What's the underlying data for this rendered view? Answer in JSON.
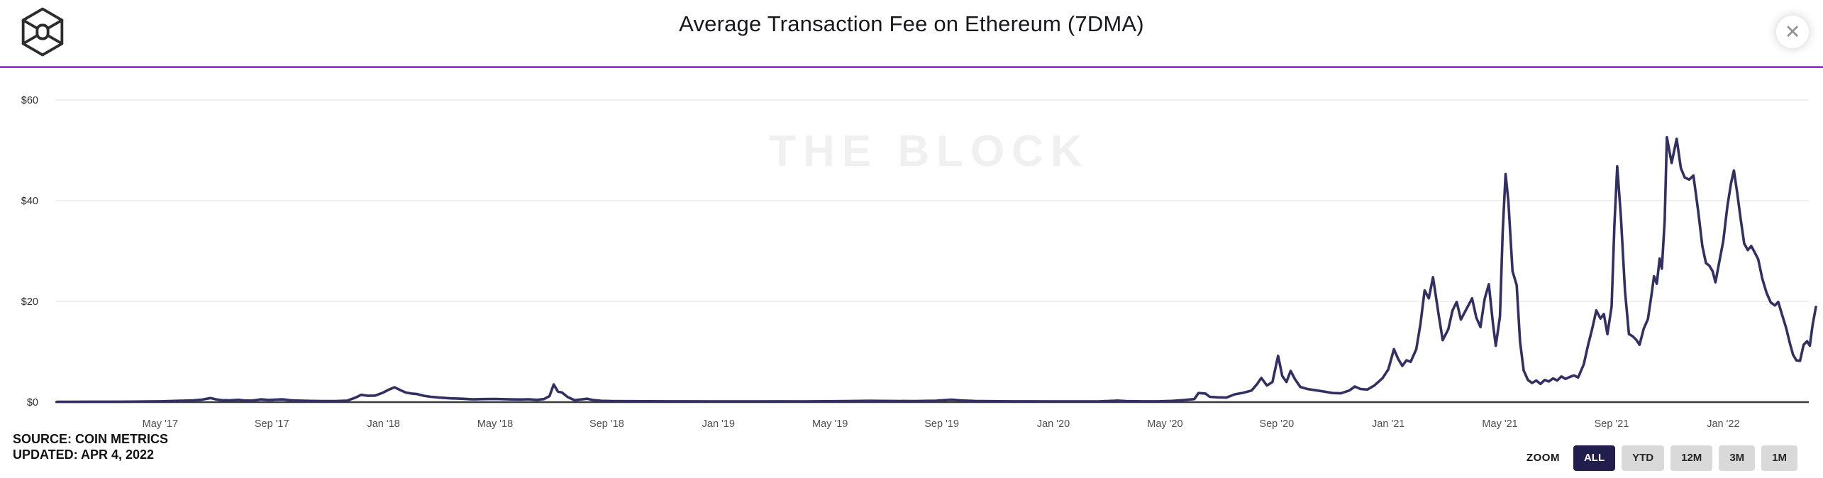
{
  "header": {
    "title": "Average Transaction Fee on Ethereum (7DMA)",
    "close_icon": "✕"
  },
  "colors": {
    "line": "#322f63",
    "divider": "#a716dc",
    "gridline": "#ececec",
    "axis": "#3a3a3a",
    "y_label": "#2b2b2b",
    "x_label": "#4d4d4d",
    "active_button_bg": "#211d4d",
    "button_bg": "#d9d9d9",
    "watermark": "#f0f0f0"
  },
  "footer": {
    "source": "SOURCE: COIN METRICS",
    "updated": "UPDATED: APR 4, 2022"
  },
  "zoom_controls": {
    "label": "ZOOM",
    "buttons": [
      {
        "label": "ALL",
        "active": true
      },
      {
        "label": "YTD",
        "active": false
      },
      {
        "label": "12M",
        "active": false
      },
      {
        "label": "3M",
        "active": false
      },
      {
        "label": "1M",
        "active": false
      }
    ]
  },
  "chart_data": {
    "type": "line",
    "title": "Average Transaction Fee on Ethereum (7DMA)",
    "watermark": "THE BLOCK",
    "x_unit": "months_since_2017-01-01",
    "x_range_dates": [
      "2017-01",
      "2022-04"
    ],
    "ylim": [
      0,
      65
    ],
    "grid": "horizontal",
    "legend": "none",
    "y_ticks": [
      {
        "v": 0,
        "label": "$0"
      },
      {
        "v": 20,
        "label": "$20"
      },
      {
        "v": 40,
        "label": "$40"
      },
      {
        "v": 60,
        "label": "$60"
      }
    ],
    "x_ticks": [
      {
        "t": 4,
        "label": "May '17"
      },
      {
        "t": 8,
        "label": "Sep '17"
      },
      {
        "t": 12,
        "label": "Jan '18"
      },
      {
        "t": 16,
        "label": "May '18"
      },
      {
        "t": 20,
        "label": "Sep '18"
      },
      {
        "t": 24,
        "label": "Jan '19"
      },
      {
        "t": 28,
        "label": "May '19"
      },
      {
        "t": 32,
        "label": "Sep '19"
      },
      {
        "t": 36,
        "label": "Jan '20"
      },
      {
        "t": 40,
        "label": "May '20"
      },
      {
        "t": 44,
        "label": "Sep '20"
      },
      {
        "t": 48,
        "label": "Jan '21"
      },
      {
        "t": 52,
        "label": "May '21"
      },
      {
        "t": 56,
        "label": "Sep '21"
      },
      {
        "t": 60,
        "label": "Jan '22"
      }
    ],
    "series": [
      {
        "name": "Average transaction fee, USD (7-day moving average)",
        "points": [
          [
            0.3,
            0.07
          ],
          [
            1,
            0.07
          ],
          [
            1.7,
            0.08
          ],
          [
            2.4,
            0.09
          ],
          [
            3,
            0.1
          ],
          [
            3.6,
            0.13
          ],
          [
            4,
            0.16
          ],
          [
            4.4,
            0.22
          ],
          [
            4.8,
            0.28
          ],
          [
            5.2,
            0.35
          ],
          [
            5.5,
            0.5
          ],
          [
            5.8,
            0.8
          ],
          [
            6,
            0.55
          ],
          [
            6.2,
            0.38
          ],
          [
            6.5,
            0.35
          ],
          [
            6.8,
            0.45
          ],
          [
            7,
            0.32
          ],
          [
            7.3,
            0.3
          ],
          [
            7.6,
            0.55
          ],
          [
            7.9,
            0.42
          ],
          [
            8.1,
            0.5
          ],
          [
            8.4,
            0.55
          ],
          [
            8.7,
            0.35
          ],
          [
            9,
            0.3
          ],
          [
            9.4,
            0.24
          ],
          [
            9.8,
            0.2
          ],
          [
            10.3,
            0.2
          ],
          [
            10.7,
            0.3
          ],
          [
            11,
            0.9
          ],
          [
            11.2,
            1.45
          ],
          [
            11.45,
            1.25
          ],
          [
            11.7,
            1.3
          ],
          [
            11.95,
            1.8
          ],
          [
            12.2,
            2.5
          ],
          [
            12.4,
            2.95
          ],
          [
            12.6,
            2.4
          ],
          [
            12.8,
            1.9
          ],
          [
            13,
            1.7
          ],
          [
            13.2,
            1.6
          ],
          [
            13.45,
            1.25
          ],
          [
            13.7,
            1.05
          ],
          [
            14,
            0.9
          ],
          [
            14.4,
            0.75
          ],
          [
            14.8,
            0.68
          ],
          [
            15.2,
            0.55
          ],
          [
            15.6,
            0.6
          ],
          [
            16,
            0.63
          ],
          [
            16.5,
            0.55
          ],
          [
            16.9,
            0.52
          ],
          [
            17.2,
            0.56
          ],
          [
            17.5,
            0.45
          ],
          [
            17.75,
            0.6
          ],
          [
            17.95,
            1.2
          ],
          [
            18.1,
            3.5
          ],
          [
            18.25,
            2.1
          ],
          [
            18.4,
            1.9
          ],
          [
            18.6,
            1.0
          ],
          [
            18.85,
            0.38
          ],
          [
            19.1,
            0.55
          ],
          [
            19.3,
            0.68
          ],
          [
            19.5,
            0.42
          ],
          [
            19.8,
            0.25
          ],
          [
            20.2,
            0.2
          ],
          [
            20.8,
            0.19
          ],
          [
            21.5,
            0.17
          ],
          [
            22.2,
            0.16
          ],
          [
            23,
            0.15
          ],
          [
            23.8,
            0.14
          ],
          [
            24.6,
            0.14
          ],
          [
            25.4,
            0.13
          ],
          [
            26.2,
            0.15
          ],
          [
            27,
            0.14
          ],
          [
            27.8,
            0.17
          ],
          [
            28.6,
            0.2
          ],
          [
            29.4,
            0.26
          ],
          [
            30.2,
            0.23
          ],
          [
            31,
            0.2
          ],
          [
            31.8,
            0.28
          ],
          [
            32.35,
            0.48
          ],
          [
            32.7,
            0.32
          ],
          [
            33.2,
            0.22
          ],
          [
            33.8,
            0.18
          ],
          [
            34.5,
            0.16
          ],
          [
            35.2,
            0.15
          ],
          [
            36,
            0.13
          ],
          [
            36.8,
            0.12
          ],
          [
            37.6,
            0.13
          ],
          [
            38.3,
            0.3
          ],
          [
            38.6,
            0.2
          ],
          [
            39.2,
            0.15
          ],
          [
            39.8,
            0.17
          ],
          [
            40.3,
            0.25
          ],
          [
            40.7,
            0.42
          ],
          [
            41.05,
            0.6
          ],
          [
            41.2,
            1.8
          ],
          [
            41.45,
            1.7
          ],
          [
            41.6,
            1.05
          ],
          [
            41.9,
            0.95
          ],
          [
            42.2,
            0.9
          ],
          [
            42.5,
            1.55
          ],
          [
            42.8,
            1.85
          ],
          [
            43.1,
            2.3
          ],
          [
            43.3,
            3.6
          ],
          [
            43.45,
            4.8
          ],
          [
            43.65,
            3.3
          ],
          [
            43.85,
            4.0
          ],
          [
            44.05,
            9.2
          ],
          [
            44.2,
            5.2
          ],
          [
            44.35,
            4.0
          ],
          [
            44.5,
            6.2
          ],
          [
            44.65,
            4.6
          ],
          [
            44.85,
            3.0
          ],
          [
            45.1,
            2.6
          ],
          [
            45.4,
            2.35
          ],
          [
            45.7,
            2.1
          ],
          [
            46,
            1.8
          ],
          [
            46.3,
            1.75
          ],
          [
            46.6,
            2.3
          ],
          [
            46.8,
            3.1
          ],
          [
            47,
            2.6
          ],
          [
            47.25,
            2.5
          ],
          [
            47.5,
            3.3
          ],
          [
            47.8,
            4.8
          ],
          [
            48,
            6.5
          ],
          [
            48.2,
            10.5
          ],
          [
            48.35,
            8.6
          ],
          [
            48.5,
            7.2
          ],
          [
            48.65,
            8.3
          ],
          [
            48.8,
            8.0
          ],
          [
            49,
            10.5
          ],
          [
            49.15,
            15.5
          ],
          [
            49.3,
            22.2
          ],
          [
            49.45,
            20.6
          ],
          [
            49.6,
            24.8
          ],
          [
            49.8,
            17.5
          ],
          [
            49.95,
            12.3
          ],
          [
            50.15,
            14.5
          ],
          [
            50.3,
            18.2
          ],
          [
            50.45,
            19.9
          ],
          [
            50.6,
            16.4
          ],
          [
            50.8,
            18.5
          ],
          [
            51,
            20.6
          ],
          [
            51.15,
            16.8
          ],
          [
            51.3,
            14.9
          ],
          [
            51.45,
            20.5
          ],
          [
            51.6,
            23.4
          ],
          [
            51.75,
            15.5
          ],
          [
            51.85,
            11.2
          ],
          [
            52,
            17
          ],
          [
            52.1,
            34
          ],
          [
            52.2,
            45.3
          ],
          [
            52.3,
            40
          ],
          [
            52.45,
            26
          ],
          [
            52.6,
            23.2
          ],
          [
            52.72,
            12
          ],
          [
            52.85,
            6.3
          ],
          [
            53,
            4.4
          ],
          [
            53.15,
            3.8
          ],
          [
            53.3,
            4.3
          ],
          [
            53.45,
            3.6
          ],
          [
            53.6,
            4.4
          ],
          [
            53.75,
            4.1
          ],
          [
            53.9,
            4.7
          ],
          [
            54.05,
            4.3
          ],
          [
            54.2,
            5.1
          ],
          [
            54.35,
            4.6
          ],
          [
            54.5,
            5.0
          ],
          [
            54.65,
            5.3
          ],
          [
            54.8,
            4.9
          ],
          [
            55,
            7.5
          ],
          [
            55.15,
            11.2
          ],
          [
            55.3,
            14.5
          ],
          [
            55.45,
            18.2
          ],
          [
            55.6,
            16.6
          ],
          [
            55.72,
            17.5
          ],
          [
            55.85,
            13.5
          ],
          [
            56,
            19
          ],
          [
            56.1,
            35
          ],
          [
            56.2,
            46.8
          ],
          [
            56.33,
            37
          ],
          [
            56.48,
            22
          ],
          [
            56.62,
            13.5
          ],
          [
            56.75,
            13.1
          ],
          [
            56.88,
            12.4
          ],
          [
            57,
            11.4
          ],
          [
            57.15,
            14.6
          ],
          [
            57.3,
            16.5
          ],
          [
            57.42,
            21
          ],
          [
            57.52,
            25
          ],
          [
            57.62,
            23.5
          ],
          [
            57.72,
            28.5
          ],
          [
            57.8,
            26.5
          ],
          [
            57.9,
            36
          ],
          [
            57.98,
            52.6
          ],
          [
            58.15,
            47.5
          ],
          [
            58.33,
            52.3
          ],
          [
            58.48,
            46.5
          ],
          [
            58.62,
            44.6
          ],
          [
            58.78,
            44.2
          ],
          [
            58.93,
            45
          ],
          [
            59.1,
            38
          ],
          [
            59.25,
            31
          ],
          [
            59.38,
            27.6
          ],
          [
            59.5,
            27.1
          ],
          [
            59.62,
            26
          ],
          [
            59.72,
            23.8
          ],
          [
            59.88,
            28.5
          ],
          [
            60,
            32
          ],
          [
            60.15,
            39
          ],
          [
            60.28,
            43.5
          ],
          [
            60.38,
            46
          ],
          [
            60.5,
            41.5
          ],
          [
            60.62,
            36.5
          ],
          [
            60.75,
            31.5
          ],
          [
            60.88,
            30.2
          ],
          [
            61,
            31
          ],
          [
            61.12,
            29.8
          ],
          [
            61.25,
            28.4
          ],
          [
            61.4,
            24.5
          ],
          [
            61.55,
            21.7
          ],
          [
            61.7,
            19.8
          ],
          [
            61.85,
            19.2
          ],
          [
            61.97,
            19.9
          ],
          [
            62.1,
            17.5
          ],
          [
            62.25,
            14.8
          ],
          [
            62.38,
            11.8
          ],
          [
            62.5,
            9.4
          ],
          [
            62.62,
            8.3
          ],
          [
            62.75,
            8.2
          ],
          [
            62.88,
            11.4
          ],
          [
            63,
            12.1
          ],
          [
            63.1,
            11.2
          ],
          [
            63.2,
            15.3
          ],
          [
            63.32,
            18.9
          ]
        ]
      }
    ]
  }
}
